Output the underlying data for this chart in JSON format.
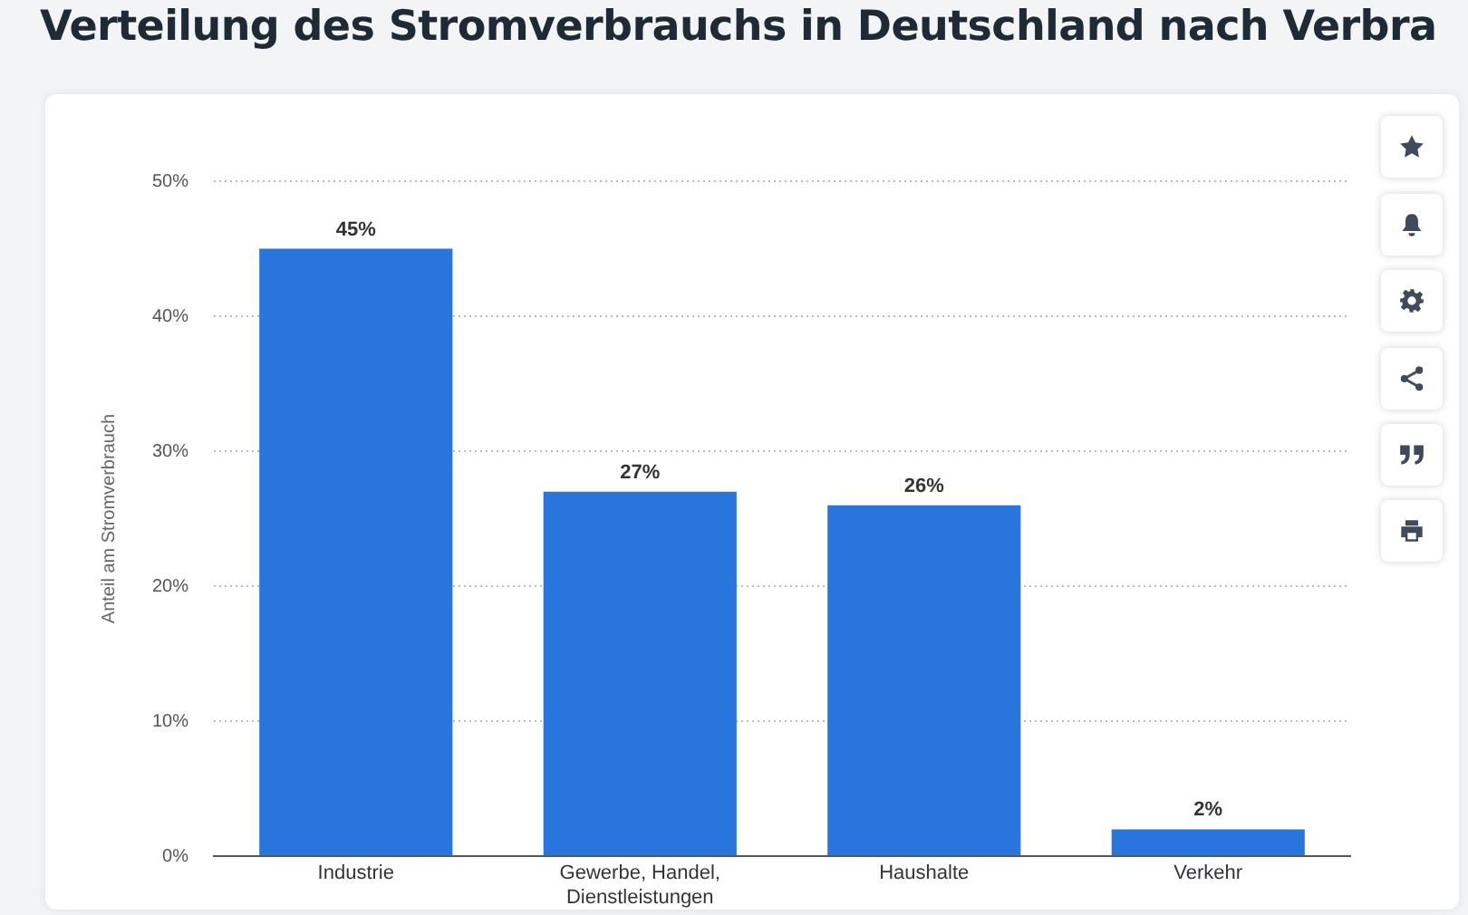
{
  "chart_data": {
    "type": "bar",
    "title": "Verteilung des Stromverbrauchs in Deutschland nach Verbra",
    "ylabel": "Anteil am Stromverbrauch",
    "categories": [
      "Industrie",
      "Gewerbe, Handel, Dienstleistungen",
      "Haushalte",
      "Verkehr"
    ],
    "values": [
      45,
      27,
      26,
      2
    ],
    "value_labels": [
      "45%",
      "27%",
      "26%",
      "2%"
    ],
    "color": "#2876dd",
    "ylim": [
      0,
      50
    ],
    "yticks": [
      {
        "value": 0,
        "label": "0%"
      },
      {
        "value": 10,
        "label": "10%"
      },
      {
        "value": 20,
        "label": "20%"
      },
      {
        "value": 30,
        "label": "30%"
      },
      {
        "value": 40,
        "label": "40%"
      },
      {
        "value": 50,
        "label": "50%"
      }
    ],
    "grid": "y",
    "legend": false
  }
}
